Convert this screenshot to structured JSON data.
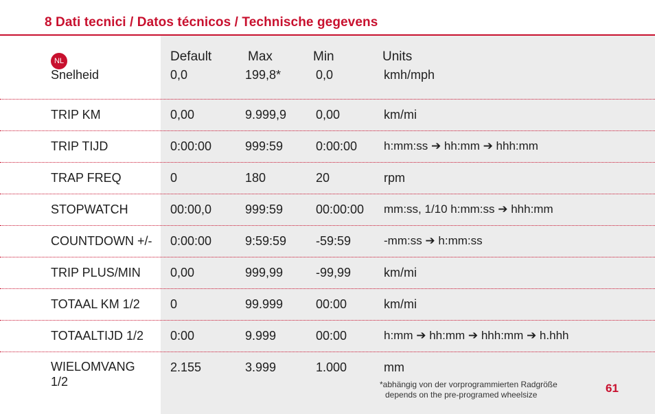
{
  "header": {
    "title": "8 Dati tecnici / Datos técnicos / Technische gegevens"
  },
  "table": {
    "language_badge": "NL",
    "columns": [
      "Default",
      "Max",
      "Min",
      "Units"
    ],
    "rows": [
      {
        "name": "Snelheid",
        "default": "0,0",
        "max": "199,8*",
        "min": "0,0",
        "units": "kmh/mph"
      },
      {
        "name": "TRIP KM",
        "default": "0,00",
        "max": "9.999,9",
        "min": "0,00",
        "units": "km/mi"
      },
      {
        "name": "TRIP TIJD",
        "default": "0:00:00",
        "max": "999:59",
        "min": "0:00:00",
        "units": "h:mm:ss ➔ hh:mm ➔ hhh:mm"
      },
      {
        "name": "TRAP FREQ",
        "default": "0",
        "max": "180",
        "min": "20",
        "units": "rpm"
      },
      {
        "name": "STOPWATCH",
        "default": "00:00,0",
        "max": "999:59",
        "min": "00:00:00",
        "units": "mm:ss, 1/10 h:mm:ss ➔ hhh:mm"
      },
      {
        "name": "COUNTDOWN +/-",
        "default": "0:00:00",
        "max": "9:59:59",
        "min": "-59:59",
        "units": "-mm:ss ➔ h:mm:ss"
      },
      {
        "name": "TRIP PLUS/MIN",
        "default": "0,00",
        "max": "999,99",
        "min": "-99,99",
        "units": "km/mi"
      },
      {
        "name": "TOTAAL KM 1/2",
        "default": "0",
        "max": "99.999",
        "min": "00:00",
        "units": "km/mi"
      },
      {
        "name": "TOTAALTIJD 1/2",
        "default": "0:00",
        "max": "9.999",
        "min": "00:00",
        "units": "h:mm ➔ hh:mm ➔ hhh:mm ➔ h.hhh"
      },
      {
        "name": "WIELOMVANG 1/2",
        "default": "2.155",
        "max": "3.999",
        "min": "1.000",
        "units": "mm"
      }
    ]
  },
  "footnote": {
    "line1": "*abhängig von der vorprogrammierten Radgröße",
    "line2": "depends on the pre-programed wheelsize"
  },
  "page_number": "61",
  "colors": {
    "accent": "#c8102e",
    "panel": "#ececec",
    "text": "#1e1e1e"
  }
}
